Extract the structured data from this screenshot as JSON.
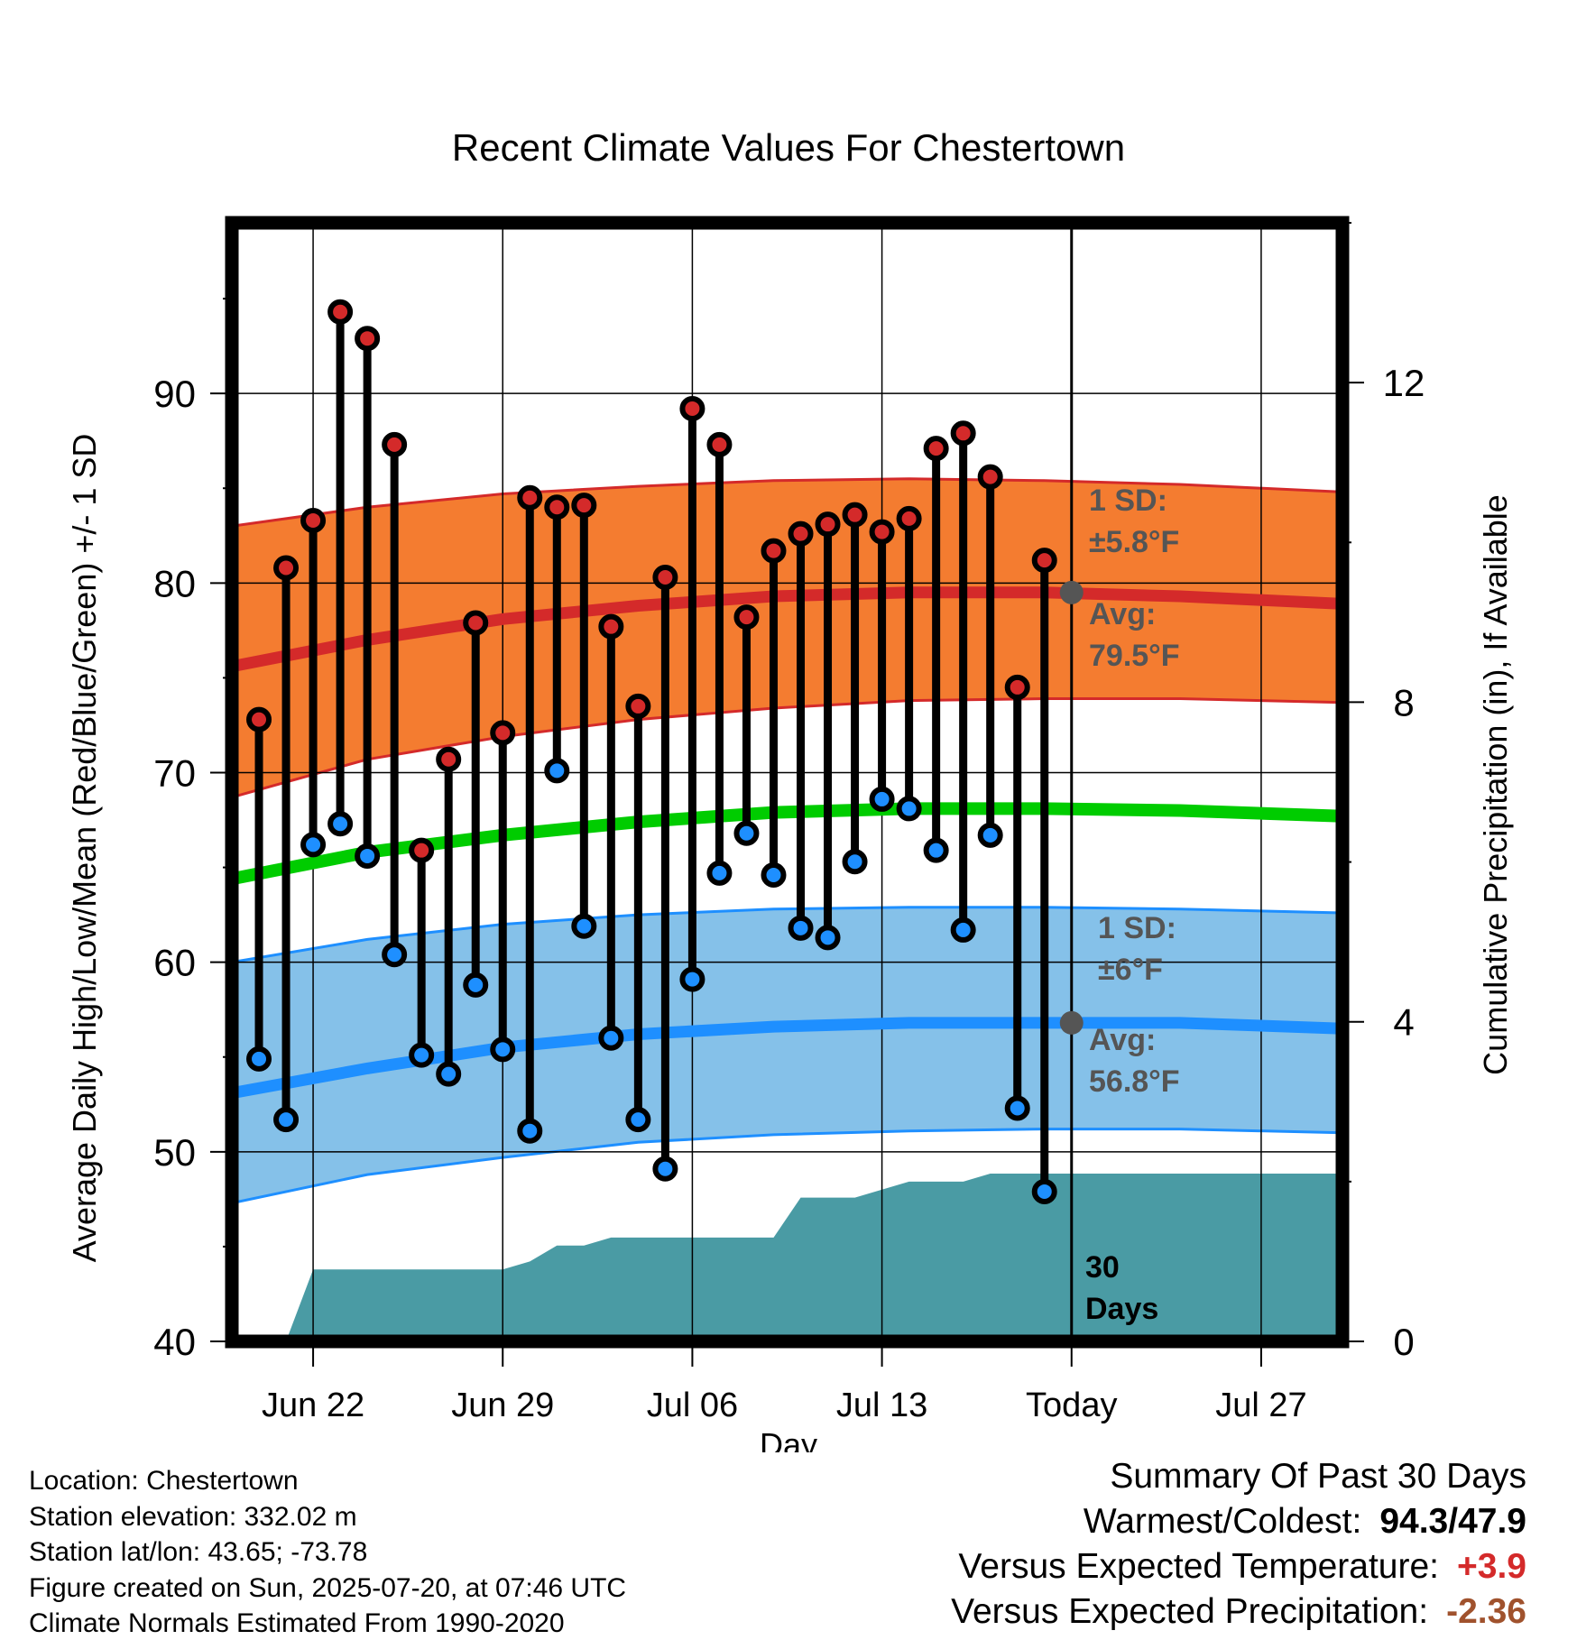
{
  "chart_data": {
    "type": "line",
    "title": "Recent Climate Values For Chestertown",
    "xlabel": "Day",
    "ylabel_left": "Average Daily High/Low/Mean (Red/Blue/Green) +/- 1 SD",
    "ylabel_right": "Cumulative Precipitation (in), If Available",
    "ylim_left": [
      40,
      99
    ],
    "ylim_right": [
      0,
      14
    ],
    "left_ticks": [
      40,
      50,
      60,
      70,
      80,
      90
    ],
    "right_ticks": [
      0,
      4,
      8,
      12
    ],
    "x_ticks": [
      {
        "day": 3,
        "label": "Jun 22"
      },
      {
        "day": 10,
        "label": "Jun 29"
      },
      {
        "day": 17,
        "label": "Jul 06"
      },
      {
        "day": 24,
        "label": "Jul 13"
      },
      {
        "day": 31,
        "label": "Today"
      },
      {
        "day": 38,
        "label": "Jul 27"
      }
    ],
    "x_range": [
      0,
      41
    ],
    "today_day": 31,
    "daily": {
      "day": [
        1,
        2,
        3,
        4,
        5,
        6,
        7,
        8,
        9,
        10,
        11,
        12,
        13,
        14,
        15,
        16,
        17,
        18,
        19,
        20,
        21,
        22,
        23,
        24,
        25,
        26,
        27,
        28,
        29,
        30
      ],
      "high": [
        72.8,
        80.8,
        83.3,
        94.3,
        92.9,
        87.3,
        65.9,
        70.7,
        77.9,
        72.1,
        84.5,
        84.0,
        84.1,
        77.7,
        73.5,
        80.3,
        89.2,
        87.3,
        78.2,
        81.7,
        82.6,
        83.1,
        83.6,
        82.7,
        83.4,
        87.1,
        87.9,
        85.6,
        74.5,
        81.2
      ],
      "low": [
        54.9,
        51.7,
        66.2,
        67.3,
        65.6,
        60.4,
        55.1,
        54.1,
        58.8,
        55.4,
        51.1,
        70.1,
        61.9,
        56.0,
        51.7,
        49.1,
        59.1,
        64.7,
        66.8,
        64.6,
        61.8,
        61.3,
        65.3,
        68.6,
        68.1,
        65.9,
        61.7,
        66.7,
        52.3,
        47.9
      ]
    },
    "normals": {
      "day": [
        0,
        5,
        10,
        15,
        20,
        25,
        30,
        35,
        41
      ],
      "high_avg": [
        75.6,
        77.0,
        78.1,
        78.8,
        79.3,
        79.5,
        79.5,
        79.3,
        78.9
      ],
      "high_lo": [
        68.7,
        70.7,
        71.9,
        72.8,
        73.4,
        73.8,
        73.9,
        73.9,
        73.7
      ],
      "high_hi": [
        83.0,
        84.0,
        84.7,
        85.1,
        85.4,
        85.5,
        85.4,
        85.2,
        84.8
      ],
      "mean_avg": [
        64.4,
        65.8,
        66.7,
        67.4,
        67.9,
        68.1,
        68.1,
        68.0,
        67.7
      ],
      "low_avg": [
        53.1,
        54.4,
        55.5,
        56.2,
        56.6,
        56.8,
        56.8,
        56.8,
        56.5
      ],
      "low_lo": [
        47.3,
        48.8,
        49.7,
        50.5,
        50.9,
        51.1,
        51.2,
        51.2,
        51.0
      ],
      "low_hi": [
        60.0,
        61.2,
        62.0,
        62.5,
        62.8,
        62.9,
        62.9,
        62.8,
        62.6
      ]
    },
    "precipitation": {
      "day": [
        0,
        1,
        2,
        3,
        10,
        11,
        12,
        13,
        14,
        20,
        21,
        22,
        23,
        24,
        25,
        26,
        27,
        28,
        41
      ],
      "inches": [
        0.0,
        0.0,
        0.0,
        0.9,
        0.9,
        1.0,
        1.2,
        1.2,
        1.3,
        1.3,
        1.8,
        1.8,
        1.8,
        1.9,
        2.0,
        2.0,
        2.0,
        2.1,
        2.1
      ]
    },
    "annotations": {
      "high_sd_label": "1 SD:",
      "high_sd_value": "±5.8°F",
      "high_avg_label": "Avg:",
      "high_avg_value": "79.5°F",
      "low_sd_label": "1 SD:",
      "low_sd_value": "±6°F",
      "low_avg_label": "Avg:",
      "low_avg_value": "56.8°F",
      "days_line1": "30",
      "days_line2": "Days"
    },
    "colors": {
      "high_band": "#f47c30",
      "high_line": "#d42a2a",
      "low_band": "#85c1e9",
      "low_line": "#1e8fff",
      "mean_line": "#00cc00",
      "precip": "#4a9ba4",
      "high_dot": "#d42a2a",
      "low_dot": "#1e8fff",
      "annotation": "#555555"
    }
  },
  "info": {
    "location": "Location: Chestertown",
    "elevation": "Station elevation: 332.02 m",
    "latlon": "Station lat/lon: 43.65; -73.78",
    "created": "Figure created on Sun, 2025-07-20, at 07:46 UTC",
    "normals": "Climate Normals Estimated From 1990-2020"
  },
  "summary": {
    "title": "Summary Of Past 30 Days",
    "warm_cold_label": "Warmest/Coldest:",
    "warm_cold_value": "94.3/47.9",
    "temp_label": "Versus Expected Temperature:",
    "temp_value": "+3.9",
    "temp_color": "#d42a2a",
    "precip_label": "Versus Expected Precipitation:",
    "precip_value": "-2.36",
    "precip_color": "#a0522d"
  }
}
